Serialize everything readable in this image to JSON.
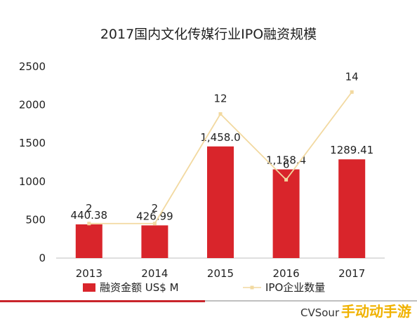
{
  "chart_data": {
    "type": "bar",
    "title": "2017国内文化传媒行业IPO融资规模",
    "categories": [
      "2013",
      "2014",
      "2015",
      "2016",
      "2017"
    ],
    "series": [
      {
        "name": "融资金额 US$ M",
        "type": "bar",
        "values": [
          440.38,
          426.99,
          1458.0,
          1158.4,
          1289.41
        ],
        "labels": [
          "440.38",
          "426.99",
          "1,458.0",
          "1,158.4",
          "1289.41"
        ],
        "color": "#d9252b"
      },
      {
        "name": "IPO企业数量",
        "type": "line",
        "values": [
          2,
          2,
          12,
          6,
          14
        ],
        "labels": [
          "2",
          "2",
          "12",
          "6",
          "14"
        ],
        "color": "#f2d9a0"
      }
    ],
    "ylim": [
      0,
      2500
    ],
    "yticks": [
      "0",
      "500",
      "1000",
      "1500",
      "2000",
      "2500"
    ],
    "grid": false,
    "legend": "bottom"
  },
  "source": "CVSour",
  "watermark": "手动动手游",
  "colors": {
    "bar": "#d9252b",
    "line": "#f2d9a0",
    "footer_red": "#c9252b",
    "footer_gray": "#bfbfbf"
  }
}
